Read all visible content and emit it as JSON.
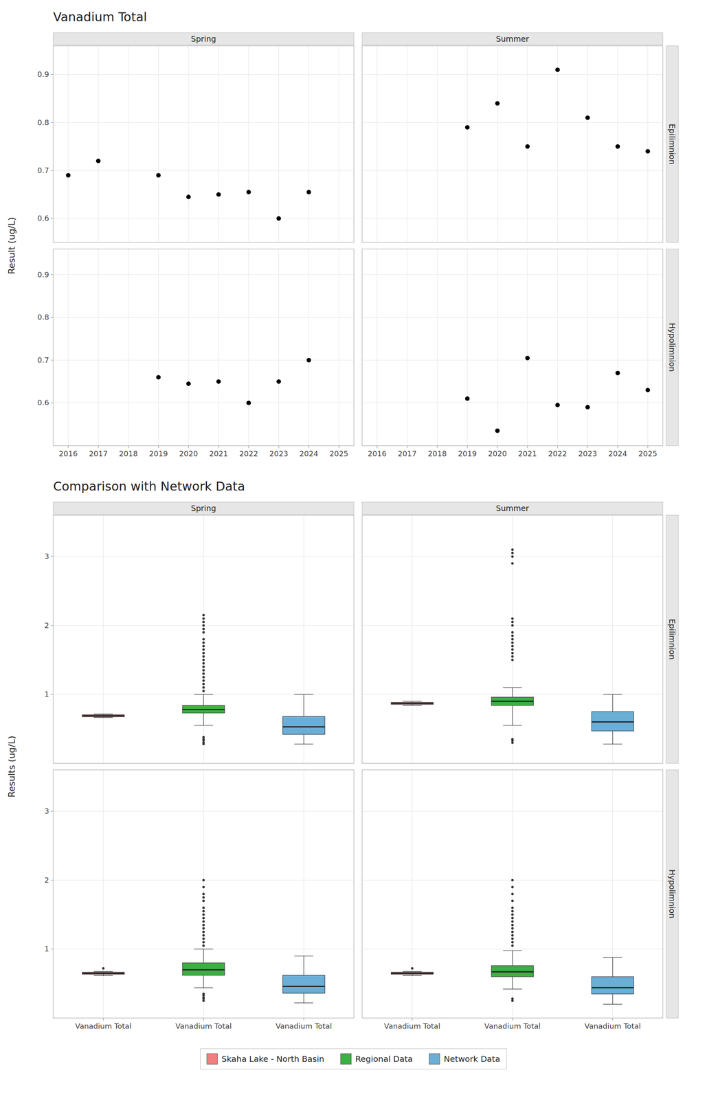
{
  "chart_data": [
    {
      "type": "scatter",
      "title": "Vanadium Total",
      "ylabel": "Result (ug/L)",
      "color": "#000000",
      "grid": true,
      "columns": [
        "Spring",
        "Summer"
      ],
      "rows": [
        "Epilimnion",
        "Hypolimnion"
      ],
      "xlim": [
        2015.5,
        2025.5
      ],
      "xticks": [
        2016,
        2017,
        2018,
        2019,
        2020,
        2021,
        2022,
        2023,
        2024,
        2025
      ],
      "panels": [
        {
          "x": [
            2016,
            2017,
            2019,
            2020,
            2021,
            2022,
            2023,
            2024
          ],
          "values": [
            0.69,
            0.72,
            0.69,
            0.645,
            0.65,
            0.655,
            0.6,
            0.655
          ],
          "ylim": [
            0.55,
            0.96
          ],
          "yticks": [
            0.6,
            0.7,
            0.8,
            0.9
          ]
        },
        {
          "x": [
            2019,
            2020,
            2021,
            2022,
            2023,
            2024,
            2025
          ],
          "values": [
            0.79,
            0.84,
            0.75,
            0.91,
            0.81,
            0.75,
            0.74
          ],
          "ylim": [
            0.55,
            0.96
          ],
          "yticks": [
            0.6,
            0.7,
            0.8,
            0.9
          ]
        },
        {
          "x": [
            2019,
            2020,
            2021,
            2022,
            2023,
            2024
          ],
          "values": [
            0.66,
            0.645,
            0.65,
            0.6,
            0.65,
            0.7
          ],
          "ylim": [
            0.5,
            0.96
          ],
          "yticks": [
            0.6,
            0.7,
            0.8,
            0.9
          ]
        },
        {
          "x": [
            2019,
            2020,
            2021,
            2022,
            2023,
            2024,
            2025
          ],
          "values": [
            0.61,
            0.535,
            0.705,
            0.595,
            0.59,
            0.67,
            0.63
          ],
          "ylim": [
            0.5,
            0.96
          ],
          "yticks": [
            0.6,
            0.7,
            0.8,
            0.9
          ]
        }
      ]
    },
    {
      "type": "box",
      "title": "Comparison with Network Data",
      "ylabel": "Results (ug/L)",
      "grid": true,
      "columns": [
        "Spring",
        "Summer"
      ],
      "rows": [
        "Epilimnion",
        "Hypolimnion"
      ],
      "categories": [
        "Vanadium Total",
        "Vanadium Total",
        "Vanadium Total"
      ],
      "series": [
        {
          "name": "Skaha Lake - North Basin",
          "color": "#f08080"
        },
        {
          "name": "Regional Data",
          "color": "#3cb043"
        },
        {
          "name": "Network Data",
          "color": "#6baed6"
        }
      ],
      "panels": [
        {
          "ylim": [
            0.0,
            3.6
          ],
          "yticks": [
            1,
            2,
            3
          ],
          "series": [
            {
              "med": 0.69,
              "q1": 0.675,
              "q3": 0.705,
              "whislo": 0.665,
              "whishi": 0.715,
              "fliers": []
            },
            {
              "med": 0.78,
              "q1": 0.73,
              "q3": 0.84,
              "whislo": 0.55,
              "whishi": 1.0,
              "fliers": [
                0.28,
                0.3,
                0.33,
                0.35,
                0.38,
                1.05,
                1.1,
                1.15,
                1.2,
                1.25,
                1.3,
                1.35,
                1.4,
                1.45,
                1.5,
                1.55,
                1.6,
                1.65,
                1.7,
                1.75,
                1.8,
                1.9,
                1.95,
                2.0,
                2.05,
                2.1,
                2.15
              ]
            },
            {
              "med": 0.53,
              "q1": 0.42,
              "q3": 0.68,
              "whislo": 0.28,
              "whishi": 1.0,
              "fliers": []
            }
          ]
        },
        {
          "ylim": [
            0.0,
            3.6
          ],
          "yticks": [
            1,
            2,
            3
          ],
          "series": [
            {
              "med": 0.87,
              "q1": 0.855,
              "q3": 0.885,
              "whislo": 0.84,
              "whishi": 0.9,
              "fliers": []
            },
            {
              "med": 0.9,
              "q1": 0.84,
              "q3": 0.96,
              "whislo": 0.55,
              "whishi": 1.1,
              "fliers": [
                0.3,
                0.33,
                0.35,
                1.5,
                1.55,
                1.6,
                1.65,
                1.7,
                1.75,
                1.8,
                1.85,
                1.9,
                2.0,
                2.05,
                2.1,
                2.9,
                3.0,
                3.05,
                3.1
              ]
            },
            {
              "med": 0.6,
              "q1": 0.47,
              "q3": 0.75,
              "whislo": 0.28,
              "whishi": 1.0,
              "fliers": []
            }
          ]
        },
        {
          "ylim": [
            0.0,
            3.6
          ],
          "yticks": [
            1,
            2,
            3
          ],
          "series": [
            {
              "med": 0.65,
              "q1": 0.635,
              "q3": 0.665,
              "whislo": 0.615,
              "whishi": 0.675,
              "fliers": [
                0.72
              ]
            },
            {
              "med": 0.7,
              "q1": 0.62,
              "q3": 0.8,
              "whislo": 0.44,
              "whishi": 1.0,
              "fliers": [
                0.25,
                0.28,
                0.3,
                0.33,
                0.35,
                1.05,
                1.1,
                1.15,
                1.2,
                1.25,
                1.3,
                1.35,
                1.4,
                1.45,
                1.5,
                1.55,
                1.6,
                1.7,
                1.75,
                1.8,
                1.9,
                2.0
              ]
            },
            {
              "med": 0.46,
              "q1": 0.36,
              "q3": 0.62,
              "whislo": 0.22,
              "whishi": 0.9,
              "fliers": []
            }
          ]
        },
        {
          "ylim": [
            0.0,
            3.6
          ],
          "yticks": [
            1,
            2,
            3
          ],
          "series": [
            {
              "med": 0.65,
              "q1": 0.635,
              "q3": 0.665,
              "whislo": 0.615,
              "whishi": 0.675,
              "fliers": [
                0.72
              ]
            },
            {
              "med": 0.67,
              "q1": 0.6,
              "q3": 0.76,
              "whislo": 0.42,
              "whishi": 0.98,
              "fliers": [
                0.25,
                0.28,
                1.05,
                1.1,
                1.15,
                1.2,
                1.25,
                1.3,
                1.35,
                1.4,
                1.45,
                1.5,
                1.55,
                1.6,
                1.7,
                1.8,
                1.9,
                2.0
              ]
            },
            {
              "med": 0.44,
              "q1": 0.35,
              "q3": 0.6,
              "whislo": 0.2,
              "whishi": 0.88,
              "fliers": []
            }
          ]
        }
      ]
    }
  ]
}
